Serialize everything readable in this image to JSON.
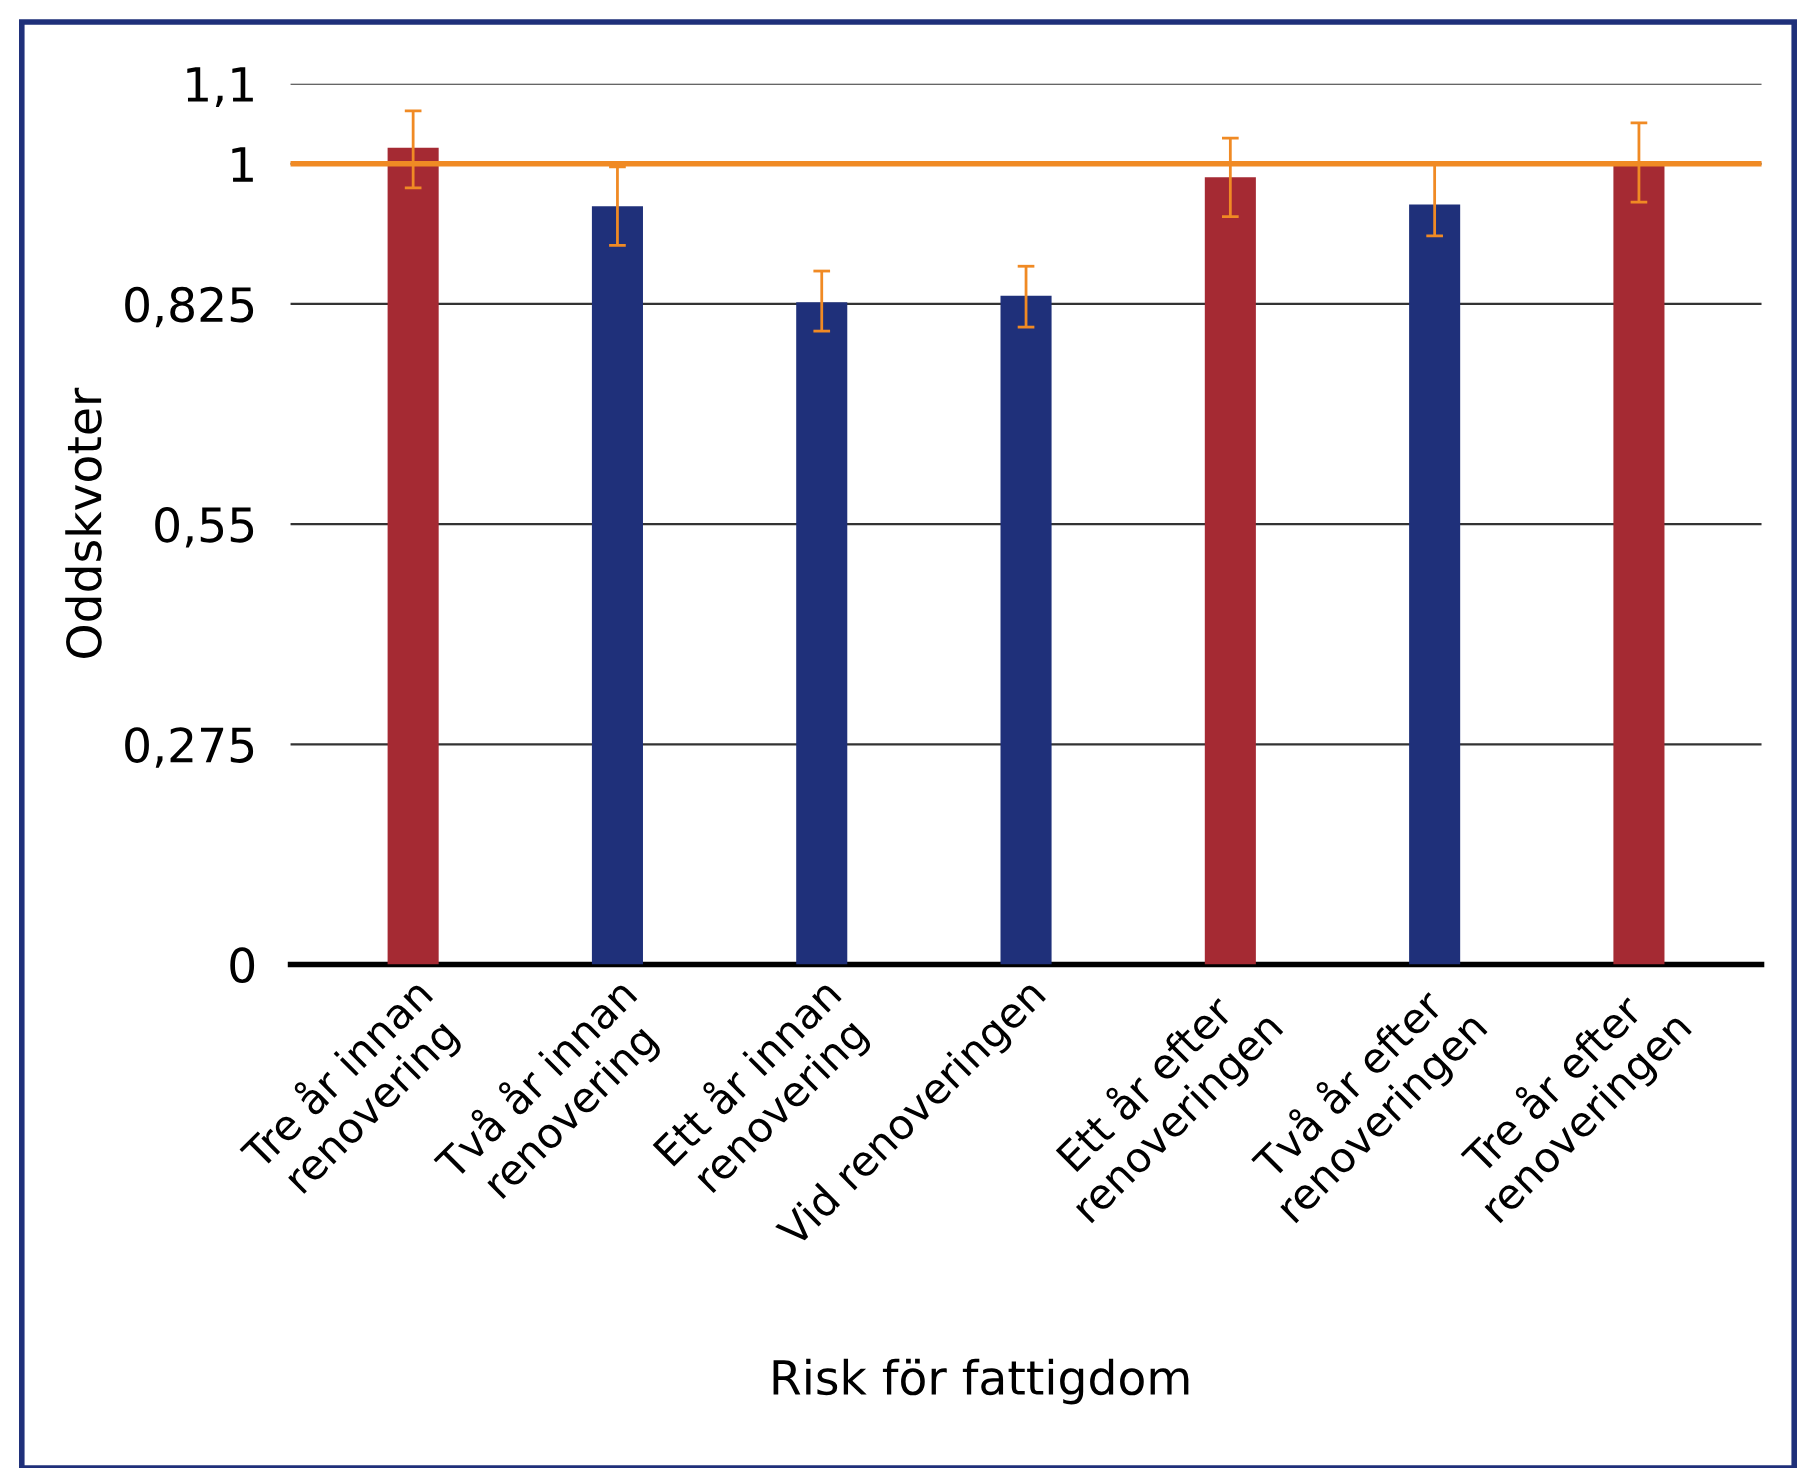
{
  "chart_data": {
    "type": "bar",
    "xlabel": "Risk för fattigdom",
    "ylabel": "Oddskvoter",
    "categories": [
      "Tre år innan\nrenovering",
      "Två år innan\nrenovering",
      "Ett år innan\nrenovering",
      "Vid renoveringen",
      "Ett år efter\nrenoveringen",
      "Två år efter\nrenoveringen",
      "Tre år efter\nrenoveringen"
    ],
    "values": [
      1.02,
      0.947,
      0.827,
      0.835,
      0.983,
      0.949,
      0.999
    ],
    "colors": [
      "#a52a33",
      "#1f307a",
      "#1f307a",
      "#1f307a",
      "#a52a33",
      "#1f307a",
      "#a52a33"
    ],
    "errors": [
      [
        0.97,
        1.066
      ],
      [
        0.898,
        0.996
      ],
      [
        0.791,
        0.866
      ],
      [
        0.796,
        0.872
      ],
      [
        0.934,
        1.032
      ],
      [
        0.91,
        0.999
      ],
      [
        0.952,
        1.051
      ]
    ],
    "ylim": [
      0,
      1.1
    ],
    "yticks": [
      0,
      {
        "value": 0.275,
        "label": "0,275"
      },
      {
        "value": 0.55,
        "label": "0,55"
      },
      {
        "value": 0.825,
        "label": "0,825"
      },
      1,
      {
        "value": 1.1,
        "label": "1,1"
      }
    ],
    "ref_lines": [
      {
        "axis": "y",
        "value": 1,
        "color": "#f08a24"
      }
    ],
    "grid": "y"
  }
}
